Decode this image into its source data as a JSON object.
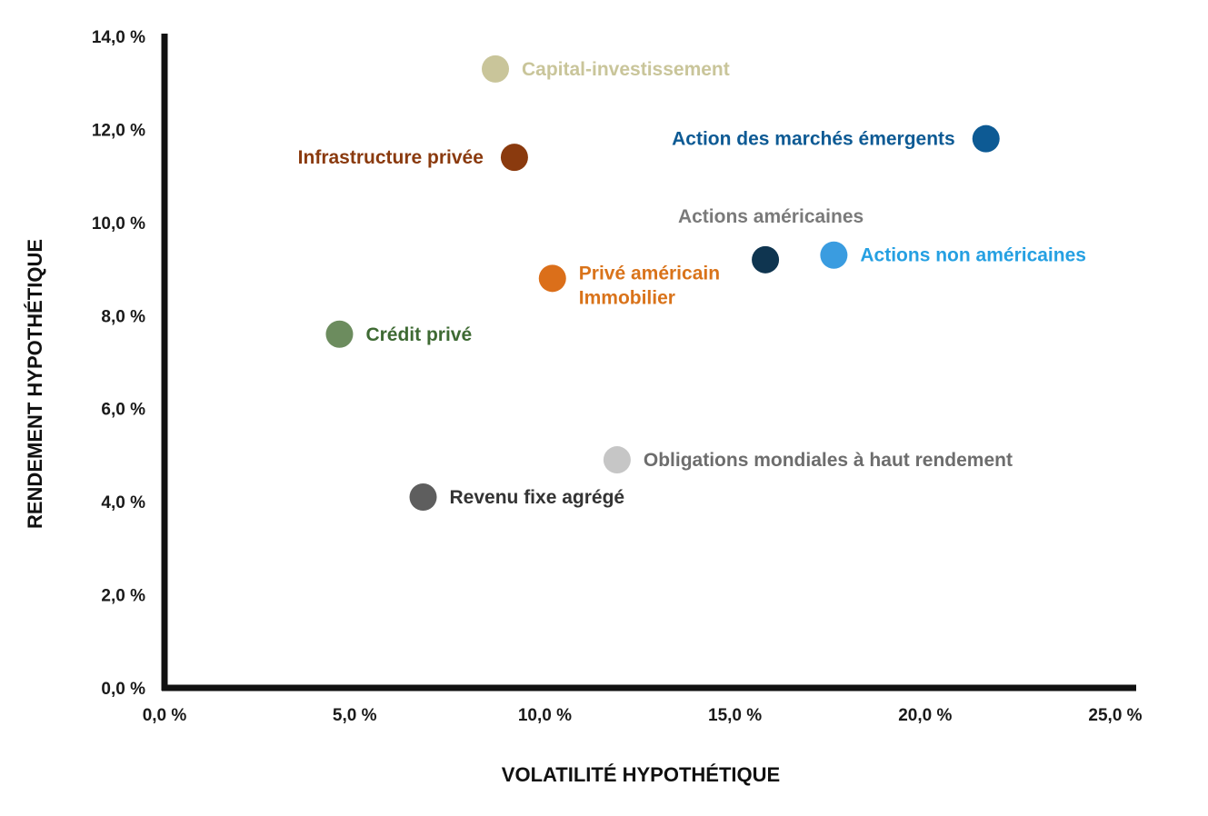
{
  "chart_data": {
    "type": "scatter",
    "xlabel": "VOLATILITÉ HYPOTHÉTIQUE",
    "ylabel": "RENDEMENT HYPOTHÉTIQUE",
    "xlim": [
      0,
      25
    ],
    "ylim": [
      0,
      14
    ],
    "x_ticks": [
      {
        "value": 0,
        "label": "0,0 %"
      },
      {
        "value": 5,
        "label": "5,0 %"
      },
      {
        "value": 10,
        "label": "10,0 %"
      },
      {
        "value": 15,
        "label": "15,0 %"
      },
      {
        "value": 20,
        "label": "20,0 %"
      },
      {
        "value": 25,
        "label": "25,0 %"
      }
    ],
    "y_ticks": [
      {
        "value": 0,
        "label": "0,0 %"
      },
      {
        "value": 2,
        "label": "2,0 %"
      },
      {
        "value": 4,
        "label": "4,0 %"
      },
      {
        "value": 6,
        "label": "6,0 %"
      },
      {
        "value": 8,
        "label": "8,0 %"
      },
      {
        "value": 10,
        "label": "10,0 %"
      },
      {
        "value": 12,
        "label": "12,0 %"
      },
      {
        "value": 14,
        "label": "14,0 %"
      }
    ],
    "grid": false,
    "legend": "none (points labeled directly)",
    "points": [
      {
        "name": "Capital-investissement",
        "lines": [
          "Capital-investissement"
        ],
        "x": 8.7,
        "y": 13.3,
        "color": "#c9c59a",
        "label_color": "#c9c59a",
        "label_side": "right"
      },
      {
        "name": "Action des marchés émergents",
        "lines": [
          "Action des marchés émergents"
        ],
        "x": 21.6,
        "y": 11.8,
        "color": "#0d5a94",
        "label_color": "#0d5a94",
        "label_side": "left"
      },
      {
        "name": "Infrastructure privée",
        "lines": [
          "Infrastructure privée"
        ],
        "x": 9.2,
        "y": 11.4,
        "color": "#8a3a0e",
        "label_color": "#8a3a0e",
        "label_side": "left"
      },
      {
        "name": "Actions américaines",
        "lines": [
          "Actions américaines"
        ],
        "x": 15.8,
        "y": 9.2,
        "color": "#0f3550",
        "label_color": "#7a7a7a",
        "label_side": "above"
      },
      {
        "name": "Actions non américaines",
        "lines": [
          "Actions non américaines"
        ],
        "x": 17.6,
        "y": 9.3,
        "color": "#3a9ce0",
        "label_color": "#25a0e2",
        "label_side": "right"
      },
      {
        "name": "Privé américain Immobilier",
        "lines": [
          "Privé américain",
          "Immobilier"
        ],
        "x": 10.2,
        "y": 8.8,
        "color": "#db6f1a",
        "label_color": "#d9731a",
        "label_side": "right"
      },
      {
        "name": "Crédit privé",
        "lines": [
          "Crédit privé"
        ],
        "x": 4.6,
        "y": 7.6,
        "color": "#6c8c5e",
        "label_color": "#3e6a33",
        "label_side": "right"
      },
      {
        "name": "Obligations mondiales à haut rendement",
        "lines": [
          "Obligations mondiales à haut rendement"
        ],
        "x": 11.9,
        "y": 4.9,
        "color": "#c6c6c6",
        "label_color": "#6d6d6d",
        "label_side": "right"
      },
      {
        "name": "Revenu fixe agrégé",
        "lines": [
          "Revenu fixe agrégé"
        ],
        "x": 6.8,
        "y": 4.1,
        "color": "#5e5e5e",
        "label_color": "#333333",
        "label_side": "right"
      }
    ]
  }
}
